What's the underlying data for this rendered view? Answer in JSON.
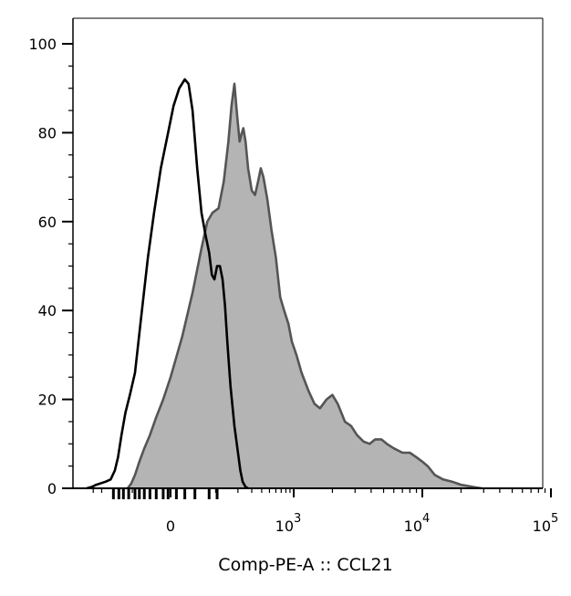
{
  "chart_data": {
    "type": "area",
    "title": "",
    "xlabel": "Comp-PE-A :: CCL21",
    "ylabel": "",
    "x_scale": "biexponential",
    "ylim": [
      0,
      100
    ],
    "grid": false,
    "legend": "none",
    "y_ticks": [
      {
        "value": 0,
        "label": "0"
      },
      {
        "value": 20,
        "label": "20"
      },
      {
        "value": 40,
        "label": "40"
      },
      {
        "value": 60,
        "label": "60"
      },
      {
        "value": 80,
        "label": "80"
      },
      {
        "value": 100,
        "label": "100"
      }
    ],
    "x_ticks": [
      {
        "value": 0,
        "label": "0",
        "exp": ""
      },
      {
        "value": 1000,
        "label": "10",
        "exp": "3"
      },
      {
        "value": 10000,
        "label": "10",
        "exp": "4"
      },
      {
        "value": 100000,
        "label": "10",
        "exp": "5"
      }
    ],
    "x_axis_rug": [
      -200,
      -165,
      -140,
      -115,
      -90,
      -75,
      -60,
      -45,
      -30,
      -15,
      -5,
      10,
      25,
      45,
      80,
      105
    ],
    "series": [
      {
        "style": "filled",
        "fill": "#b4b4b4",
        "stroke": "#555555",
        "points": [
          [
            -120,
            0
          ],
          [
            -105,
            1
          ],
          [
            -90,
            3
          ],
          [
            -75,
            6
          ],
          [
            -60,
            9
          ],
          [
            -45,
            12
          ],
          [
            -30,
            16
          ],
          [
            -15,
            20
          ],
          [
            0,
            25
          ],
          [
            20,
            34
          ],
          [
            40,
            44
          ],
          [
            60,
            54
          ],
          [
            75,
            60
          ],
          [
            90,
            62
          ],
          [
            110,
            63
          ],
          [
            130,
            69
          ],
          [
            150,
            78
          ],
          [
            165,
            86
          ],
          [
            180,
            91
          ],
          [
            195,
            84
          ],
          [
            210,
            78
          ],
          [
            225,
            80
          ],
          [
            235,
            81
          ],
          [
            250,
            78
          ],
          [
            270,
            72
          ],
          [
            300,
            67
          ],
          [
            330,
            66
          ],
          [
            360,
            69
          ],
          [
            390,
            72
          ],
          [
            420,
            70
          ],
          [
            470,
            65
          ],
          [
            530,
            58
          ],
          [
            600,
            52
          ],
          [
            680,
            43
          ],
          [
            760,
            40
          ],
          [
            860,
            37
          ],
          [
            950,
            33
          ],
          [
            1050,
            30
          ],
          [
            1150,
            26
          ],
          [
            1300,
            22
          ],
          [
            1450,
            19
          ],
          [
            1600,
            18
          ],
          [
            1800,
            20
          ],
          [
            2000,
            21
          ],
          [
            2200,
            19
          ],
          [
            2500,
            15
          ],
          [
            2800,
            14
          ],
          [
            3100,
            12
          ],
          [
            3500,
            10.5
          ],
          [
            3900,
            10
          ],
          [
            4300,
            11
          ],
          [
            4800,
            11
          ],
          [
            5300,
            10
          ],
          [
            6000,
            9
          ],
          [
            7000,
            8
          ],
          [
            8000,
            8
          ],
          [
            9000,
            7
          ],
          [
            10000,
            6
          ],
          [
            11000,
            5
          ],
          [
            12500,
            3
          ],
          [
            14500,
            2
          ],
          [
            17000,
            1.5
          ],
          [
            20000,
            0.8
          ],
          [
            23000,
            0.5
          ],
          [
            26000,
            0.2
          ],
          [
            29000,
            0
          ]
        ]
      },
      {
        "style": "line",
        "fill": "none",
        "stroke": "#000000",
        "points": [
          [
            -500,
            0
          ],
          [
            -420,
            0.3
          ],
          [
            -360,
            0.8
          ],
          [
            -300,
            1.2
          ],
          [
            -260,
            1.5
          ],
          [
            -220,
            2
          ],
          [
            -190,
            4
          ],
          [
            -170,
            7
          ],
          [
            -150,
            12
          ],
          [
            -130,
            17
          ],
          [
            -110,
            21
          ],
          [
            -90,
            26
          ],
          [
            -70,
            38
          ],
          [
            -50,
            52
          ],
          [
            -35,
            62
          ],
          [
            -20,
            72
          ],
          [
            -5,
            80
          ],
          [
            5,
            86
          ],
          [
            15,
            90
          ],
          [
            25,
            92
          ],
          [
            32,
            91
          ],
          [
            40,
            85
          ],
          [
            50,
            72
          ],
          [
            60,
            62
          ],
          [
            70,
            57
          ],
          [
            80,
            53
          ],
          [
            88,
            48
          ],
          [
            96,
            47
          ],
          [
            105,
            50
          ],
          [
            115,
            50
          ],
          [
            125,
            47
          ],
          [
            135,
            41
          ],
          [
            145,
            33
          ],
          [
            160,
            23
          ],
          [
            180,
            14
          ],
          [
            200,
            8
          ],
          [
            215,
            4
          ],
          [
            230,
            1.5
          ],
          [
            250,
            0.3
          ],
          [
            270,
            0
          ]
        ]
      }
    ]
  }
}
